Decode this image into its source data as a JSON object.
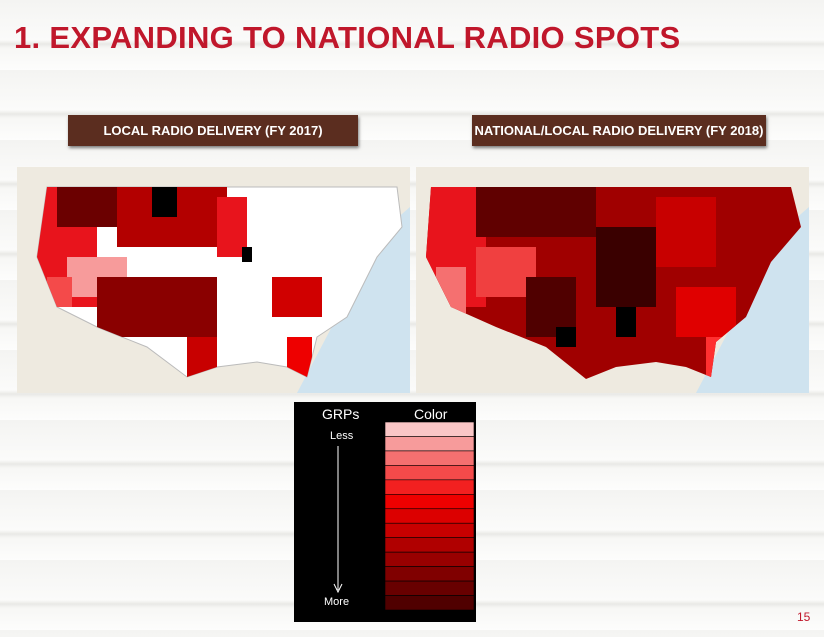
{
  "title": "1. EXPANDING TO NATIONAL RADIO SPOTS",
  "maps": [
    {
      "label": "LOCAL RADIO DELIVERY (FY 2017)"
    },
    {
      "label": "NATIONAL/LOCAL RADIO DELIVERY (FY 2018)"
    }
  ],
  "legend": {
    "headers": [
      "GRPs",
      "Color"
    ],
    "less": "Less",
    "more": "More",
    "colors": [
      "#fac6c6",
      "#f79b9b",
      "#f57070",
      "#f44a4a",
      "#f22020",
      "#ee0000",
      "#dc0000",
      "#c80000",
      "#b00000",
      "#980000",
      "#800000",
      "#680000",
      "#500000"
    ]
  },
  "page_number": "15"
}
